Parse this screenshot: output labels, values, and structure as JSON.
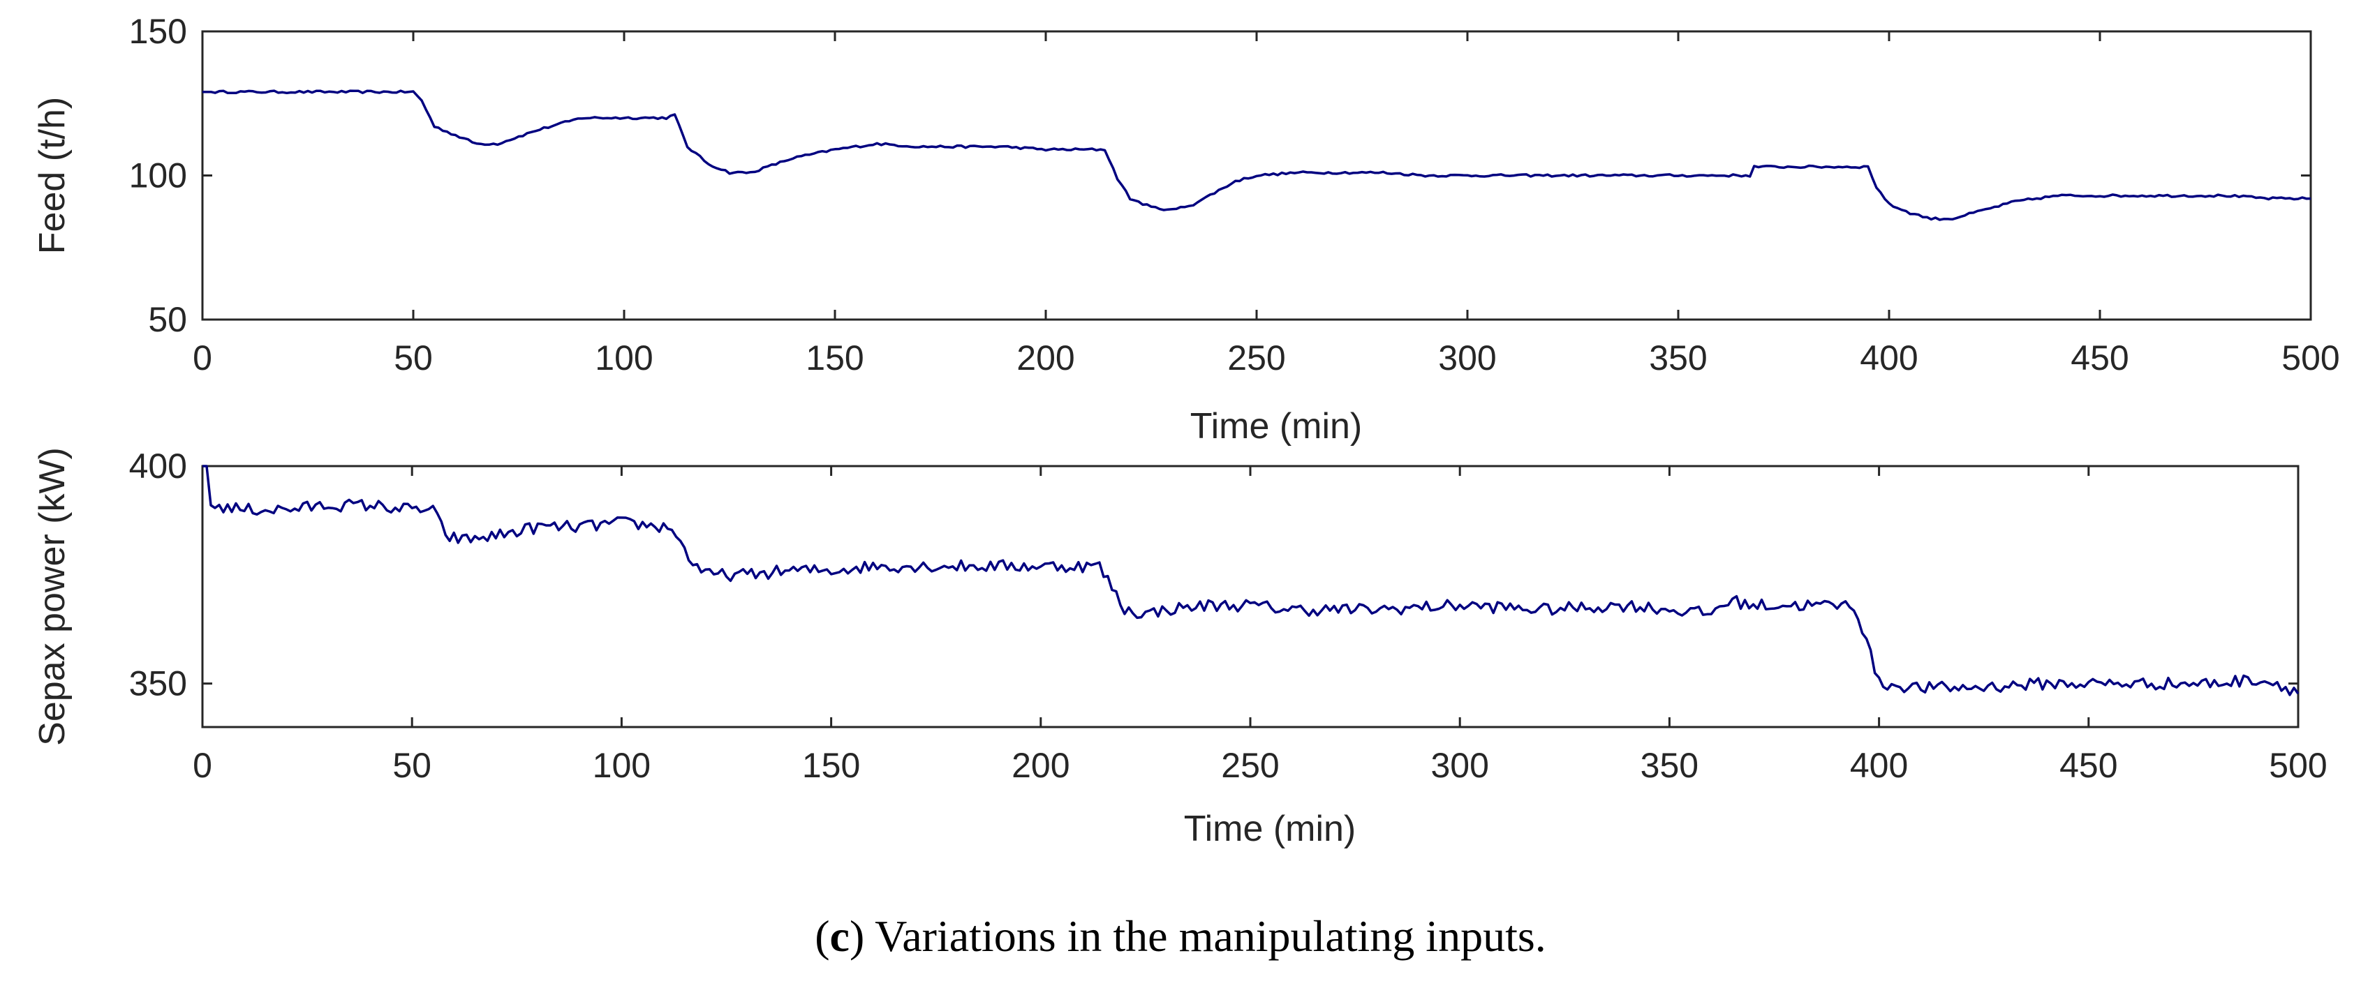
{
  "caption": {
    "open": "(",
    "letter": "c",
    "text": ") Variations in the manipulating inputs."
  },
  "colors": {
    "line": "#000080",
    "axes": "#262626"
  },
  "chart_data": [
    {
      "type": "line",
      "title": "",
      "xlabel": "Time (min)",
      "ylabel": "Feed (t/h)",
      "xlim": [
        0,
        500
      ],
      "ylim": [
        50,
        150
      ],
      "xticks": [
        0,
        50,
        100,
        150,
        200,
        250,
        300,
        350,
        400,
        450,
        500
      ],
      "yticks": [
        50,
        100,
        150
      ],
      "grid": false,
      "noise": 0.4,
      "series": [
        {
          "name": "Feed",
          "x": [
            0,
            50,
            52,
            55,
            60,
            65,
            70,
            80,
            90,
            100,
            110,
            112,
            115,
            120,
            125,
            130,
            140,
            150,
            160,
            170,
            180,
            190,
            200,
            210,
            214,
            217,
            220,
            225,
            230,
            235,
            240,
            245,
            250,
            260,
            270,
            280,
            290,
            300,
            310,
            320,
            330,
            340,
            350,
            360,
            367,
            368,
            370,
            380,
            390,
            395,
            397,
            400,
            405,
            410,
            415,
            420,
            425,
            430,
            440,
            450,
            460,
            470,
            480,
            490,
            500
          ],
          "y": [
            129,
            129,
            126,
            117,
            114,
            111,
            111,
            116,
            120,
            120,
            120,
            121,
            110,
            104,
            101,
            101,
            106,
            109,
            111,
            110,
            110,
            110,
            109,
            109,
            109,
            99,
            92,
            89,
            88,
            90,
            94,
            98,
            100,
            101,
            101,
            101,
            100,
            100,
            100,
            100,
            100,
            100,
            100,
            100,
            100,
            103,
            103,
            103,
            103,
            103,
            96,
            90,
            87,
            85,
            85,
            87,
            89,
            91,
            93,
            93,
            93,
            93,
            93,
            92,
            92
          ]
        }
      ]
    },
    {
      "type": "line",
      "title": "",
      "xlabel": "Time (min)",
      "ylabel": "Sepax power (kW)",
      "xlim": [
        0,
        500
      ],
      "ylim": [
        340,
        400
      ],
      "xticks": [
        0,
        50,
        100,
        150,
        200,
        250,
        300,
        350,
        400,
        450,
        500
      ],
      "yticks": [
        350,
        400
      ],
      "grid": false,
      "noise": 1.4,
      "series": [
        {
          "name": "Sepax power",
          "x": [
            0,
            1,
            2,
            10,
            20,
            30,
            40,
            50,
            55,
            58,
            62,
            70,
            80,
            90,
            100,
            110,
            112,
            116,
            120,
            125,
            130,
            140,
            150,
            160,
            170,
            180,
            190,
            200,
            210,
            214,
            217,
            220,
            225,
            230,
            240,
            250,
            260,
            280,
            300,
            320,
            340,
            360,
            362,
            365,
            370,
            380,
            390,
            394,
            397,
            400,
            410,
            420,
            440,
            460,
            480,
            490,
            495,
            500
          ],
          "y": [
            400,
            400,
            391,
            390,
            390,
            391,
            391,
            390,
            390,
            384,
            383,
            384,
            386,
            386,
            387,
            386,
            386,
            379,
            375,
            375,
            375,
            376,
            376,
            377,
            377,
            377,
            377,
            377,
            377,
            377,
            372,
            367,
            366,
            367,
            368,
            368,
            367,
            367,
            368,
            367,
            368,
            366,
            368,
            369,
            368,
            368,
            368,
            368,
            360,
            350,
            349,
            349,
            350,
            350,
            350,
            351,
            350,
            348
          ]
        }
      ]
    }
  ]
}
